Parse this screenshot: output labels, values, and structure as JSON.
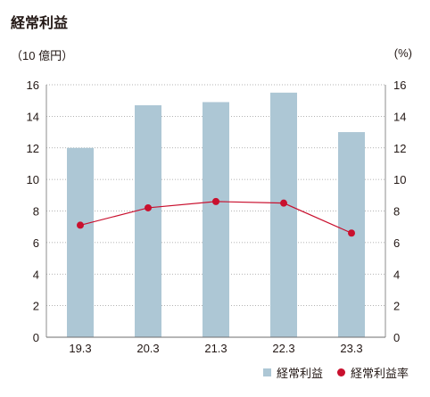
{
  "chart_data": {
    "type": "bar",
    "title": "経常利益",
    "left_axis_label": "（10 億円）",
    "right_axis_label": "(%)",
    "categories": [
      "19.3",
      "20.3",
      "21.3",
      "22.3",
      "23.3"
    ],
    "series": [
      {
        "name": "経常利益",
        "type": "bar",
        "axis": "left",
        "color": "#adc7d5",
        "values": [
          12.0,
          14.7,
          14.9,
          15.5,
          13.0
        ]
      },
      {
        "name": "経常利益率",
        "type": "line",
        "axis": "right",
        "color": "#c9102e",
        "values": [
          7.1,
          8.2,
          8.6,
          8.5,
          6.6
        ]
      }
    ],
    "ylim_left": [
      0,
      16
    ],
    "ylim_right": [
      0,
      16
    ],
    "yticks": [
      "0",
      "2",
      "4",
      "6",
      "8",
      "10",
      "12",
      "14",
      "16"
    ],
    "grid": "dotted horizontal",
    "legend": "bottom-right"
  }
}
